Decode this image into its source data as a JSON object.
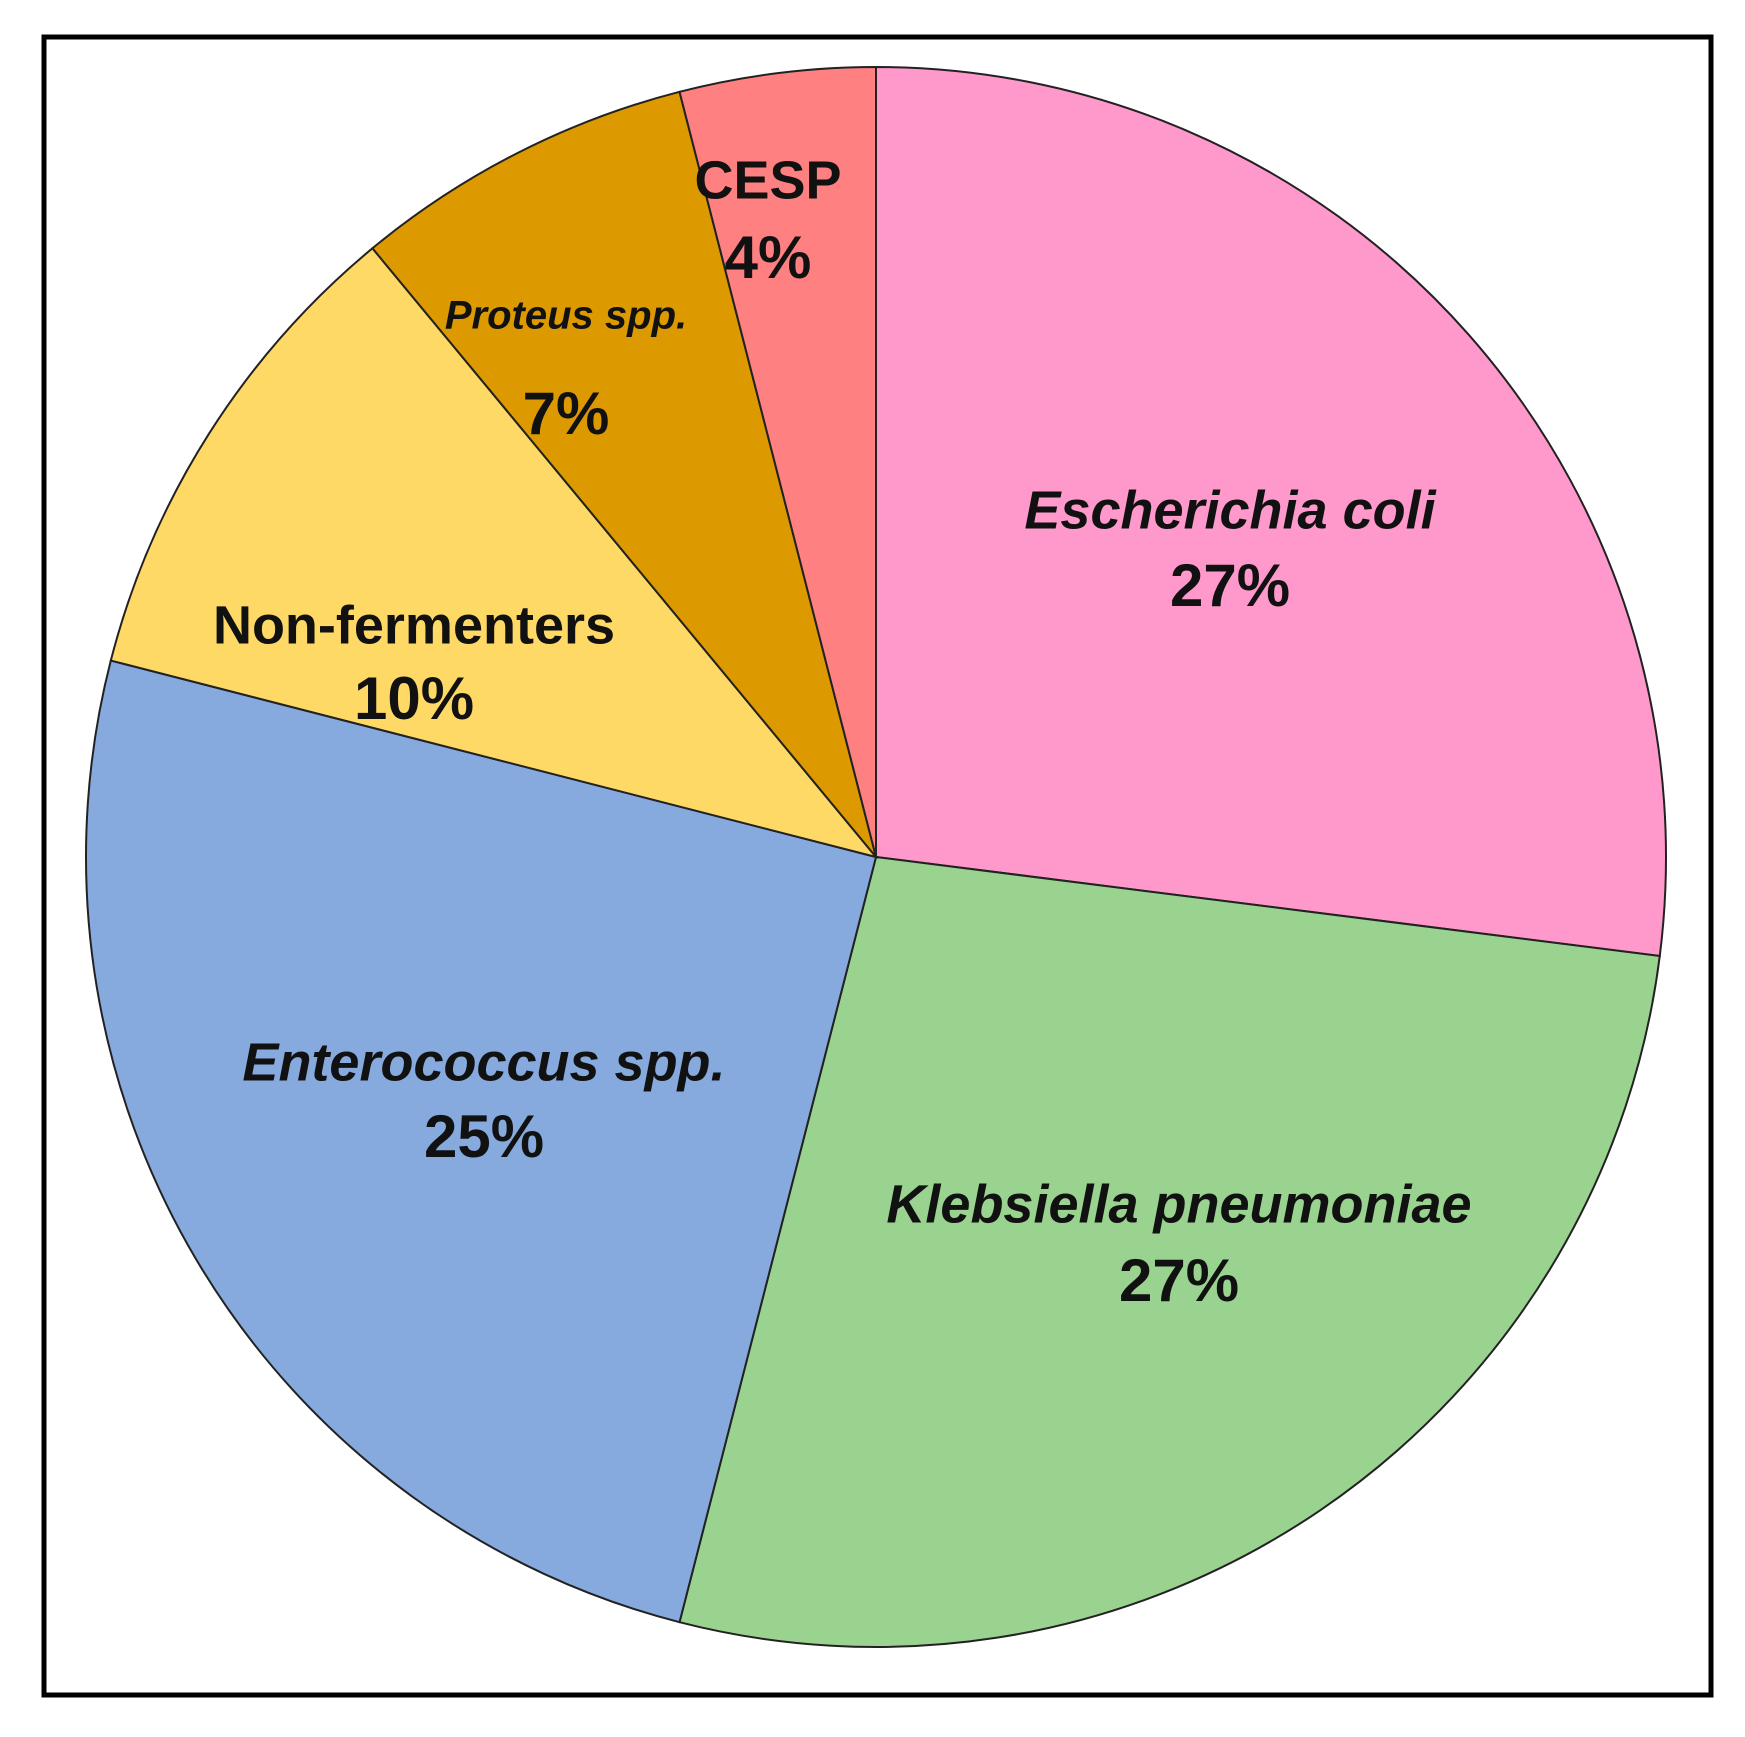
{
  "chart_data": {
    "type": "pie",
    "categories": [
      "Escherichia coli",
      "Klebsiella pneumoniae",
      "Enterococcus spp.",
      "Non-fermenters",
      "Proteus spp.",
      "CESP"
    ],
    "values": [
      27,
      27,
      25,
      10,
      7,
      4
    ],
    "value_labels": [
      "27%",
      "27%",
      "25%",
      "10%",
      "7%",
      "4%"
    ],
    "colors": [
      "#ff99cc",
      "#99d38f",
      "#86aade",
      "#ffd966",
      "#dd9900",
      "#ff8080"
    ]
  }
}
